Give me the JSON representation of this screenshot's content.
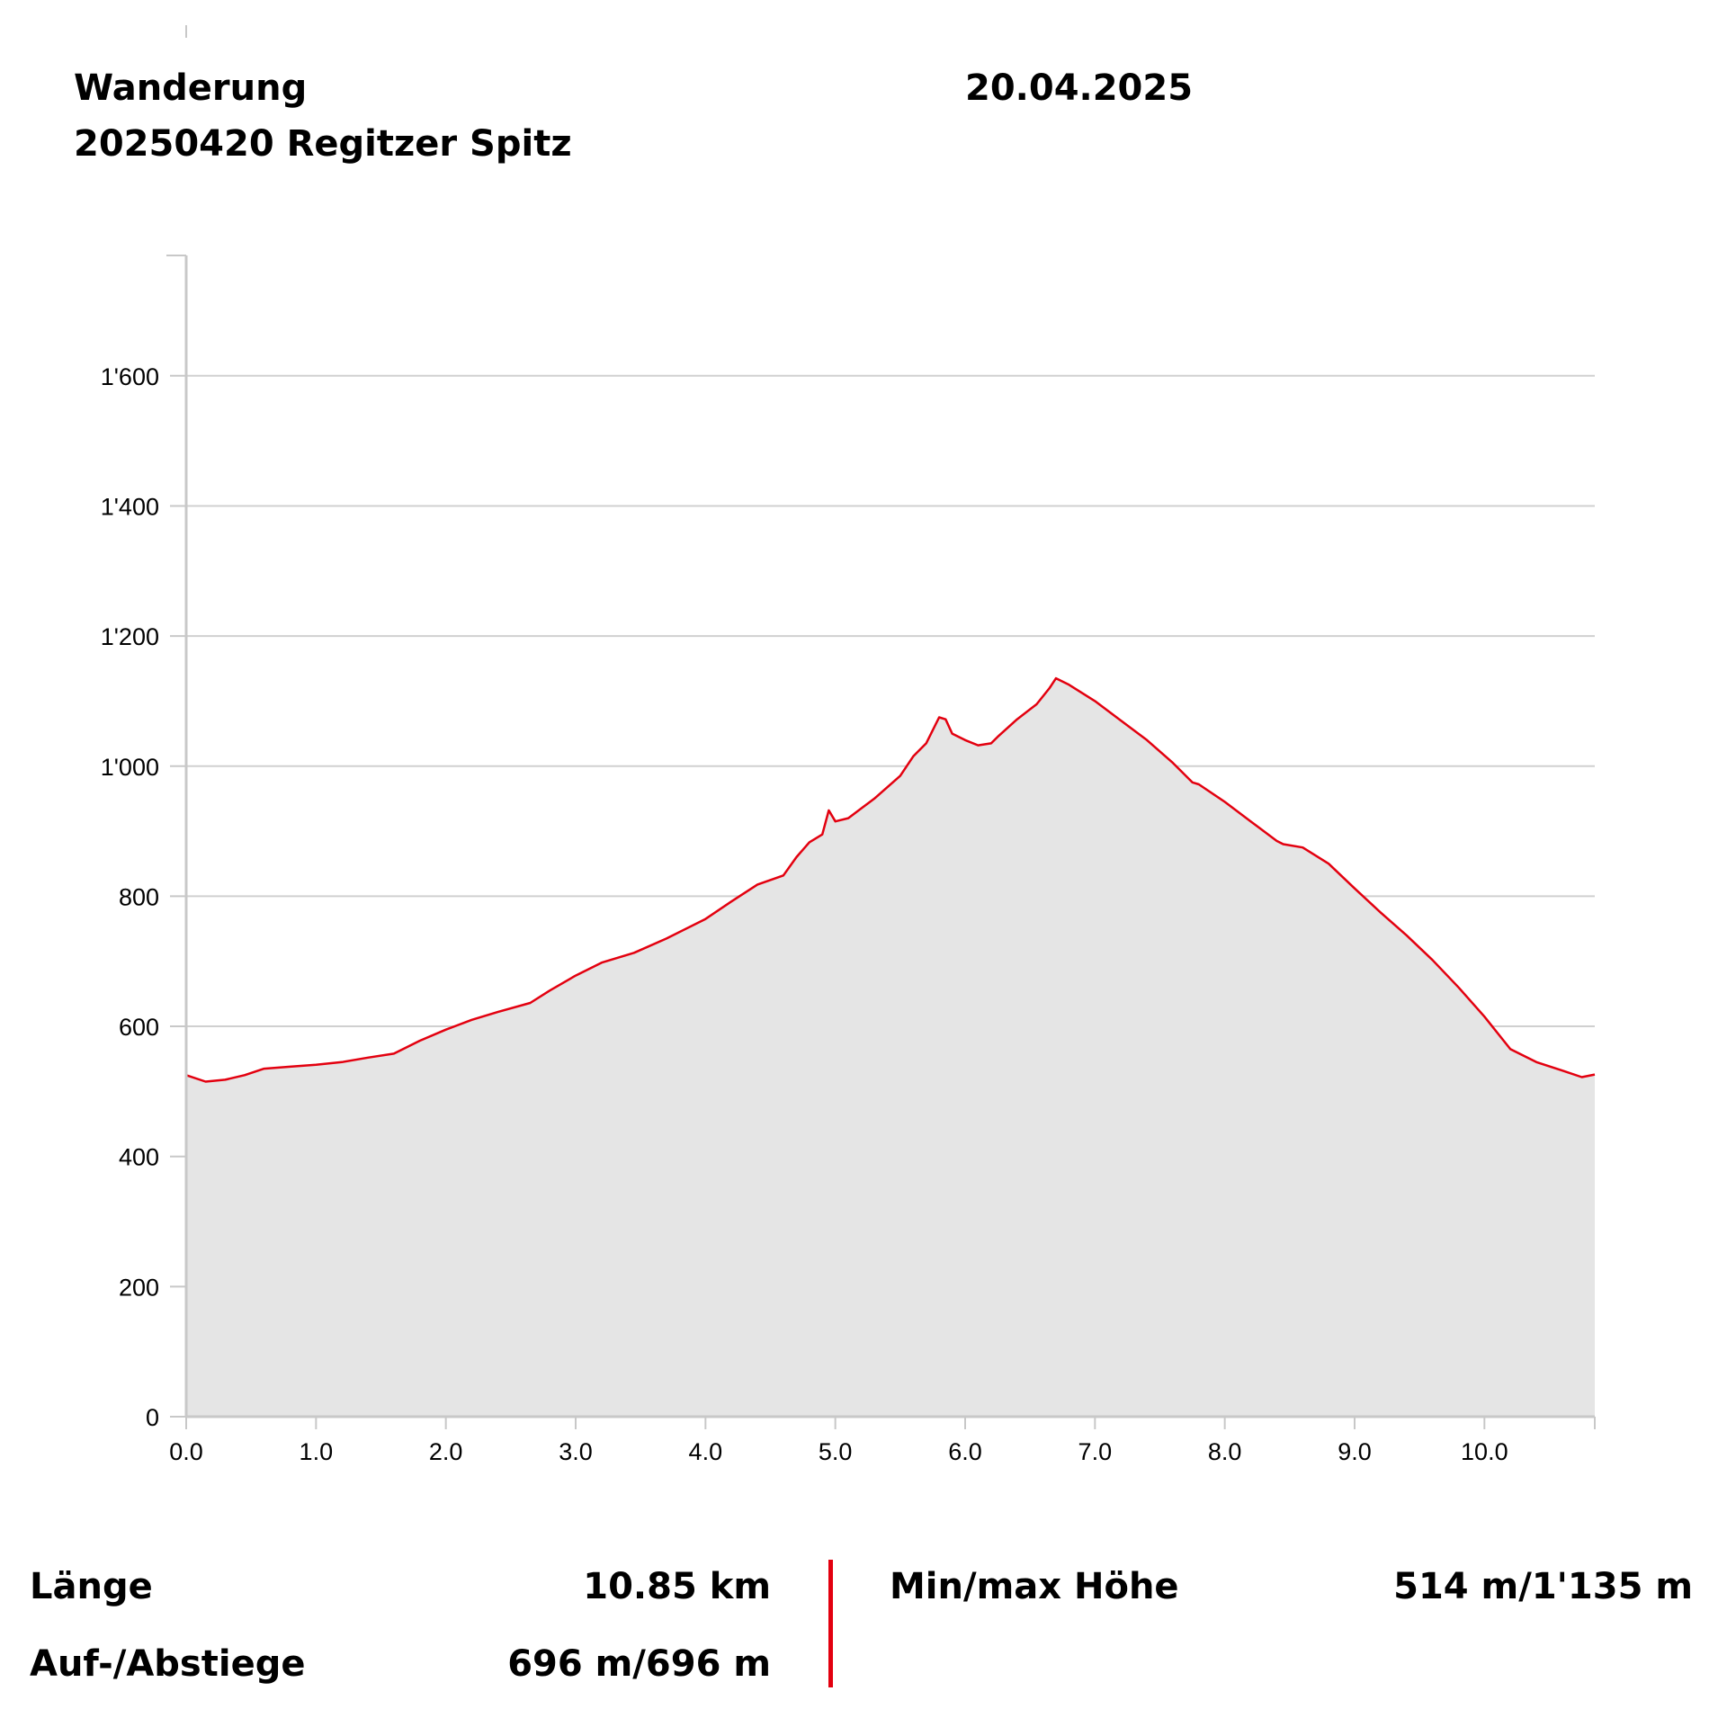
{
  "header": {
    "activity": "Wanderung",
    "route_name": "20250420 Regitzer Spitz",
    "date": "20.04.2025"
  },
  "stats": {
    "length_label": "Länge",
    "length_value": "10.85 km",
    "ascent_label": "Auf-/Abstiege",
    "ascent_value": "696 m/696 m",
    "minmax_label": "Min/max Höhe",
    "minmax_value": "514 m/1'135 m"
  },
  "colors": {
    "line": "#e3000f",
    "fill": "#e5e5e5",
    "grid": "#d0d0d0",
    "axis": "#c8c8c8",
    "divider": "#e3000f"
  },
  "chart_data": {
    "type": "area",
    "title": "",
    "xlabel": "",
    "ylabel": "",
    "xlim": [
      0,
      10.85
    ],
    "ylim": [
      0,
      1785
    ],
    "x_ticks": [
      0,
      1,
      2,
      3,
      4,
      5,
      6,
      7,
      8,
      9,
      10
    ],
    "x_tick_labels": [
      "0.0",
      "1.0",
      "2.0",
      "3.0",
      "4.0",
      "5.0",
      "6.0",
      "7.0",
      "8.0",
      "9.0",
      "10.0"
    ],
    "y_ticks": [
      0,
      200,
      400,
      600,
      800,
      1000,
      1200,
      1400,
      1600
    ],
    "y_tick_labels": [
      "0",
      "200",
      "400",
      "600",
      "800",
      "1'000",
      "1'200",
      "1'400",
      "1'600"
    ],
    "grid": true,
    "legend": "none",
    "series": [
      {
        "x": [
          0,
          0.15,
          0.3,
          0.45,
          0.6,
          0.8,
          1.0,
          1.2,
          1.4,
          1.6,
          1.8,
          2.0,
          2.2,
          2.4,
          2.65,
          2.8,
          3.0,
          3.2,
          3.45,
          3.7,
          4.0,
          4.2,
          4.4,
          4.6,
          4.7,
          4.8,
          4.9,
          4.95,
          5.0,
          5.1,
          5.2,
          5.3,
          5.5,
          5.6,
          5.7,
          5.8,
          5.85,
          5.9,
          6.0,
          6.1,
          6.2,
          6.25,
          6.4,
          6.55,
          6.65,
          6.7,
          6.8,
          7.0,
          7.2,
          7.4,
          7.6,
          7.75,
          7.8,
          8.0,
          8.2,
          8.4,
          8.45,
          8.6,
          8.8,
          9.0,
          9.2,
          9.4,
          9.6,
          9.8,
          10.0,
          10.2,
          10.4,
          10.6,
          10.75,
          10.85
        ],
        "y": [
          525,
          515,
          518,
          525,
          535,
          538,
          541,
          545,
          552,
          558,
          578,
          595,
          610,
          622,
          636,
          655,
          678,
          698,
          713,
          735,
          765,
          792,
          818,
          832,
          860,
          883,
          895,
          932,
          915,
          920,
          935,
          950,
          985,
          1015,
          1035,
          1075,
          1072,
          1050,
          1040,
          1032,
          1035,
          1045,
          1072,
          1095,
          1120,
          1135,
          1125,
          1100,
          1070,
          1040,
          1005,
          975,
          972,
          945,
          915,
          885,
          880,
          875,
          850,
          812,
          775,
          740,
          702,
          660,
          615,
          565,
          545,
          532,
          522,
          526
        ]
      }
    ]
  }
}
